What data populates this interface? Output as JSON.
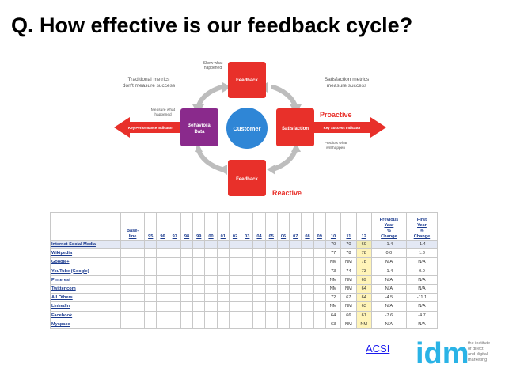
{
  "title": "Q. How effective is our feedback cycle?",
  "diagram": {
    "feedback_top": "Feedback",
    "feedback_bottom": "Feedback",
    "behavioral": [
      "Behavioral",
      "Data"
    ],
    "customer": "Customer",
    "satisfaction": "Satisfaction",
    "show_what": [
      "Show what",
      "happened"
    ],
    "traditional": [
      "Traditional metrics",
      "don't measure success"
    ],
    "satisfaction_metrics": [
      "Satisfaction metrics",
      "measure success"
    ],
    "measure_what": [
      "Measure what",
      "happened"
    ],
    "kpi": "Key Performance Indicator",
    "proactive": "Proactive",
    "ksi": "Key Success Indicator",
    "predicts": [
      "Predicts what",
      "will happen"
    ],
    "reactive": "Reactive"
  },
  "table": {
    "headers": [
      "",
      "Base-\nline",
      "95",
      "96",
      "97",
      "98",
      "99",
      "00",
      "01",
      "02",
      "03",
      "04",
      "05",
      "06",
      "07",
      "08",
      "09",
      "10",
      "11",
      "12",
      "Previous\nYear\n%\nChange",
      "First\nYear\n%\nChange"
    ],
    "rows": [
      {
        "name": "Internet Social Media",
        "v10": "70",
        "v11": "70",
        "v12": "69",
        "prev": "-1.4",
        "first": "-1.4"
      },
      {
        "name": "Wikipedia",
        "v10": "77",
        "v11": "78",
        "v12": "78",
        "prev": "0.0",
        "first": "1.3"
      },
      {
        "name": "Google+",
        "v10": "NM",
        "v11": "NM",
        "v12": "78",
        "prev": "N/A",
        "first": "N/A"
      },
      {
        "name": "YouTube (Google)",
        "v10": "73",
        "v11": "74",
        "v12": "73",
        "prev": "-1.4",
        "first": "0.0"
      },
      {
        "name": "Pinterest",
        "v10": "NM",
        "v11": "NM",
        "v12": "69",
        "prev": "N/A",
        "first": "N/A"
      },
      {
        "name": "Twitter.com",
        "v10": "NM",
        "v11": "NM",
        "v12": "64",
        "prev": "N/A",
        "first": "N/A"
      },
      {
        "name": "All Others",
        "v10": "72",
        "v11": "67",
        "v12": "64",
        "prev": "-4.5",
        "first": "-11.1"
      },
      {
        "name": "LinkedIn",
        "v10": "NM",
        "v11": "NM",
        "v12": "63",
        "prev": "N/A",
        "first": "N/A"
      },
      {
        "name": "Facebook",
        "v10": "64",
        "v11": "66",
        "v12": "61",
        "prev": "-7.6",
        "first": "-4.7"
      },
      {
        "name": "Myspace",
        "v10": "63",
        "v11": "NM",
        "v12": "NM",
        "prev": "N/A",
        "first": "N/A"
      }
    ]
  },
  "link": "ACSI",
  "logo": {
    "letters": "idm",
    "tagline": [
      "the institute",
      "of direct",
      "and digital",
      "marketing"
    ]
  },
  "colors": {
    "red": "#e8302a",
    "purple": "#8a2a8c",
    "blue": "#2f86d6",
    "arrow_grey": "#b9b9b9",
    "link": "#1a1aee"
  }
}
